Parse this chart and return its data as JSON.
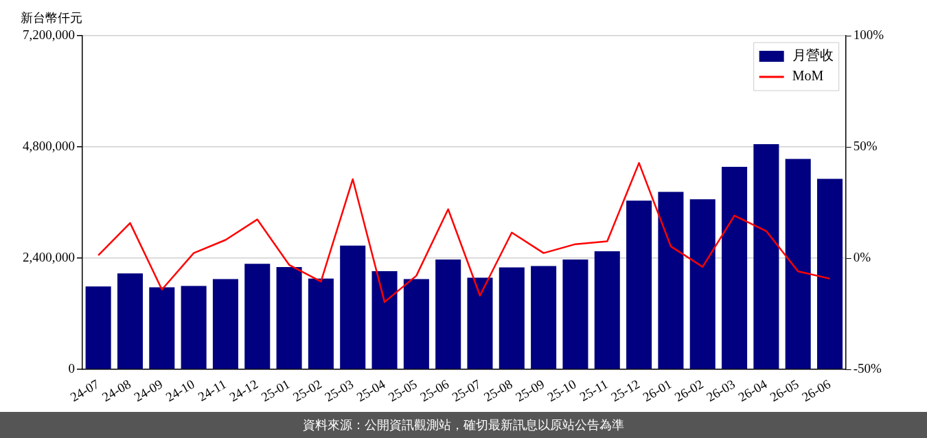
{
  "chart_data": {
    "type": "bar",
    "ylabel": "新台幣仟元",
    "categories": [
      "24-07",
      "24-08",
      "24-09",
      "24-10",
      "24-11",
      "24-12",
      "25-01",
      "25-02",
      "25-03",
      "25-04",
      "25-05",
      "25-06",
      "25-07",
      "25-08",
      "25-09",
      "25-10",
      "25-11",
      "25-12",
      "26-01",
      "26-02",
      "26-03",
      "26-04",
      "26-05",
      "26-06"
    ],
    "series": [
      {
        "name": "月營收",
        "color": "#000080",
        "values": [
          1790000,
          2070000,
          1770000,
          1800000,
          1950000,
          2280000,
          2210000,
          1960000,
          2670000,
          2120000,
          1950000,
          2370000,
          1980000,
          2200000,
          2230000,
          2370000,
          2550000,
          3640000,
          3830000,
          3670000,
          4370000,
          4860000,
          4540000,
          4110000
        ]
      },
      {
        "name": "MoM",
        "type": "line",
        "axis": "y2",
        "color": "#ff0000",
        "values": [
          1.3,
          15.8,
          -14.1,
          2.3,
          8.2,
          17.4,
          -3.0,
          -10.5,
          35.5,
          -19.7,
          -7.9,
          22.0,
          -16.8,
          11.5,
          2.3,
          6.3,
          7.6,
          42.8,
          5.3,
          -3.9,
          19.1,
          12.2,
          -5.9,
          -9.2
        ]
      }
    ],
    "ylim": [
      0,
      7200000
    ],
    "yticks": [
      {
        "value": 0,
        "label": "0"
      },
      {
        "value": 2400000,
        "label": "2,400,000"
      },
      {
        "value": 4800000,
        "label": "4,800,000"
      },
      {
        "value": 7200000,
        "label": "7,200,000"
      }
    ],
    "y2lim": [
      -50,
      100
    ],
    "y2ticks": [
      {
        "value": -50,
        "label": "-50%"
      },
      {
        "value": 0,
        "label": "0%"
      },
      {
        "value": 50,
        "label": "50%"
      },
      {
        "value": 100,
        "label": "100%"
      }
    ],
    "grid": "y",
    "legend": "top right",
    "marker": "none",
    "annotations": [
      "資料來源：公開資訊觀測站，確切最新訊息以原站公告為準"
    ]
  }
}
